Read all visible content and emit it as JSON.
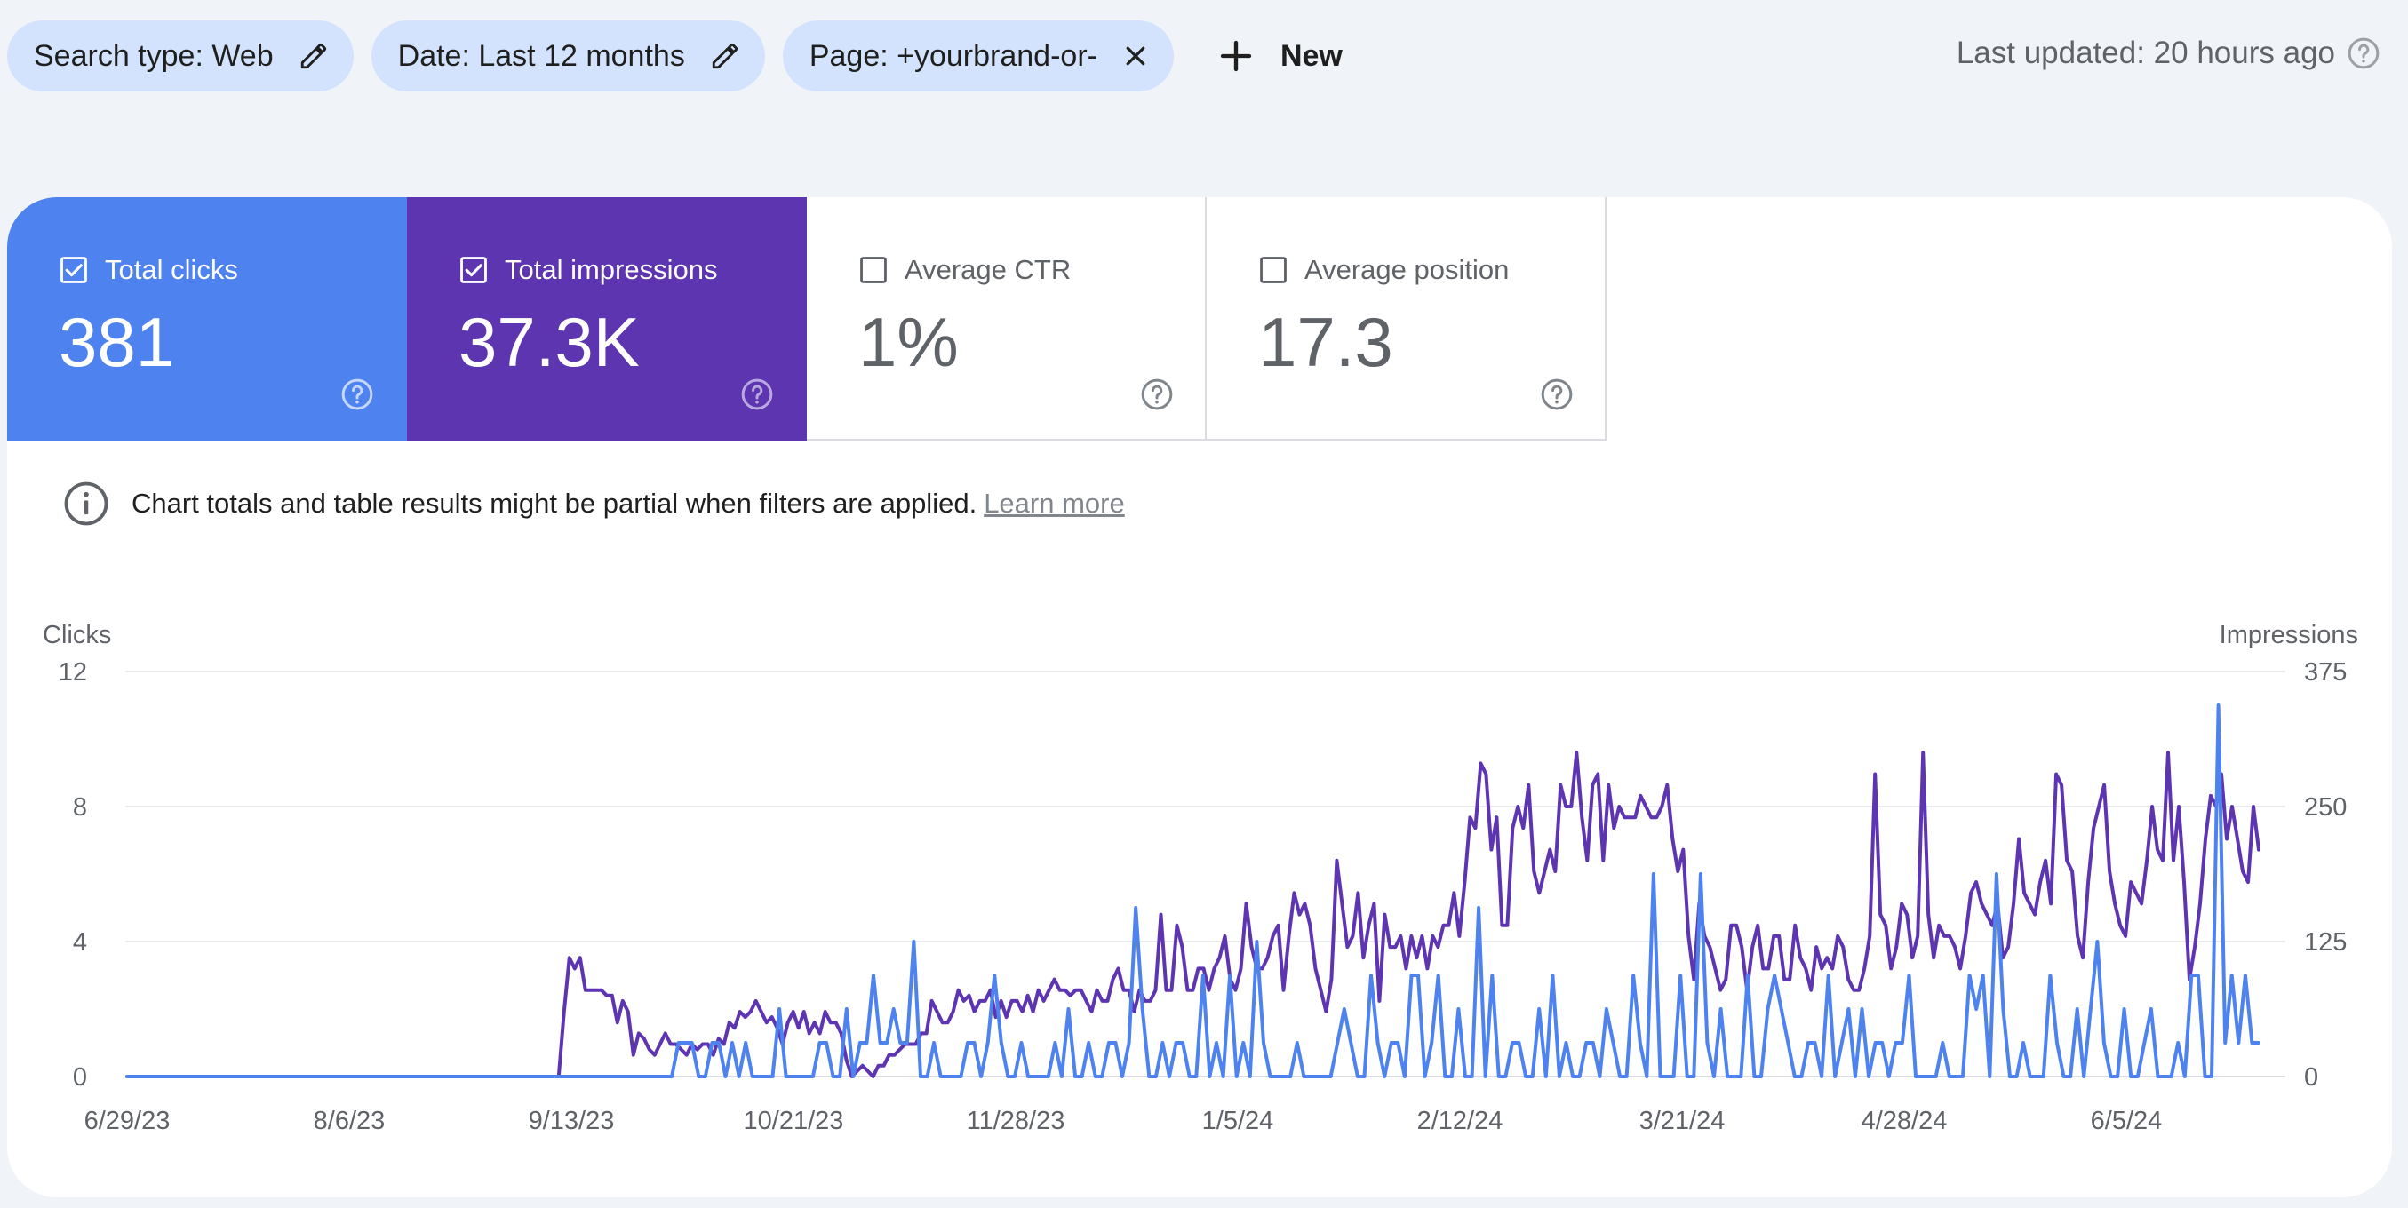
{
  "filters": {
    "chips": [
      {
        "label": "Search type: Web",
        "icon": "pencil-icon"
      },
      {
        "label": "Date: Last 12 months",
        "icon": "pencil-icon"
      },
      {
        "label": "Page: +yourbrand-or-",
        "icon": "close-icon"
      }
    ],
    "new_label": "New",
    "last_updated": "Last updated: 20 hours ago"
  },
  "metrics": [
    {
      "label": "Total clicks",
      "value": "381",
      "checked": true,
      "color": "#4e82ee"
    },
    {
      "label": "Total impressions",
      "value": "37.3K",
      "checked": true,
      "color": "#5e35b1"
    },
    {
      "label": "Average CTR",
      "value": "1%",
      "checked": false
    },
    {
      "label": "Average position",
      "value": "17.3",
      "checked": false
    }
  ],
  "notice": {
    "text": "Chart totals and table results might be partial when filters are applied.",
    "link": "Learn more"
  },
  "chart_data": {
    "type": "line",
    "x_start": "6/29/23",
    "x_end": "6/26/24",
    "x_ticks": [
      "6/29/23",
      "8/6/23",
      "9/13/23",
      "10/21/23",
      "11/28/23",
      "1/5/24",
      "2/12/24",
      "3/21/24",
      "4/28/24",
      "6/5/24"
    ],
    "y_left": {
      "label": "Clicks",
      "ticks": [
        "0",
        "4",
        "8",
        "12"
      ],
      "range": [
        0,
        12
      ]
    },
    "y_right": {
      "label": "Impressions",
      "ticks": [
        "0",
        "125",
        "250",
        "375"
      ],
      "range": [
        0,
        375
      ]
    },
    "grid": true,
    "series": [
      {
        "name": "Clicks",
        "axis": "left",
        "color": "#4e82ee",
        "values": [
          0,
          0,
          0,
          0,
          0,
          0,
          0,
          0,
          0,
          0,
          0,
          0,
          0,
          0,
          0,
          0,
          0,
          0,
          0,
          0,
          0,
          0,
          0,
          0,
          0,
          0,
          0,
          0,
          0,
          0,
          0,
          0,
          0,
          0,
          0,
          0,
          0,
          0,
          0,
          0,
          0,
          0,
          0,
          0,
          0,
          0,
          0,
          0,
          0,
          0,
          0,
          0,
          0,
          0,
          0,
          0,
          0,
          0,
          0,
          0,
          0,
          0,
          0,
          0,
          0,
          0,
          0,
          0,
          0,
          0,
          0,
          0,
          0,
          0,
          0,
          0,
          0,
          0,
          0,
          0,
          0,
          0,
          1,
          1,
          1,
          0,
          0,
          1,
          1,
          0,
          1,
          0,
          1,
          0,
          0,
          0,
          0,
          2,
          0,
          0,
          0,
          0,
          0,
          1,
          1,
          0,
          0,
          2,
          0,
          1,
          1,
          3,
          1,
          1,
          2,
          1,
          1,
          4,
          0,
          0,
          1,
          0,
          0,
          0,
          0,
          1,
          1,
          0,
          1,
          3,
          1,
          0,
          0,
          1,
          0,
          0,
          0,
          0,
          1,
          0,
          2,
          0,
          0,
          1,
          0,
          0,
          1,
          1,
          0,
          1,
          5,
          2,
          0,
          0,
          1,
          0,
          1,
          1,
          0,
          0,
          3,
          0,
          1,
          0,
          3,
          0,
          1,
          0,
          4,
          1,
          0,
          0,
          0,
          0,
          1,
          0,
          0,
          0,
          0,
          0,
          1,
          2,
          1,
          0,
          0,
          3,
          1,
          0,
          1,
          1,
          0,
          3,
          3,
          0,
          1,
          3,
          0,
          0,
          2,
          0,
          0,
          5,
          0,
          3,
          0,
          0,
          1,
          1,
          0,
          0,
          2,
          0,
          3,
          0,
          1,
          0,
          0,
          1,
          1,
          0,
          2,
          1,
          0,
          0,
          3,
          1,
          0,
          6,
          0,
          0,
          0,
          3,
          0,
          0,
          6,
          1,
          0,
          2,
          0,
          0,
          0,
          3,
          0,
          0,
          2,
          3,
          2,
          1,
          0,
          0,
          1,
          1,
          0,
          3,
          0,
          1,
          2,
          0,
          2,
          0,
          1,
          1,
          0,
          1,
          1,
          3,
          0,
          0,
          0,
          0,
          1,
          0,
          0,
          0,
          3,
          2,
          3,
          0,
          6,
          2,
          0,
          0,
          1,
          0,
          0,
          0,
          3,
          1,
          0,
          0,
          2,
          0,
          2,
          4,
          1,
          0,
          0,
          2,
          0,
          0,
          1,
          2,
          0,
          0,
          0,
          1,
          0,
          3,
          3,
          0,
          0,
          11,
          1,
          3,
          1,
          3,
          1,
          1
        ]
      },
      {
        "name": "Impressions",
        "axis": "right",
        "color": "#5e35b1",
        "values": [
          0,
          0,
          0,
          0,
          0,
          0,
          0,
          0,
          0,
          0,
          0,
          0,
          0,
          0,
          0,
          0,
          0,
          0,
          0,
          0,
          0,
          0,
          0,
          0,
          0,
          0,
          0,
          0,
          0,
          0,
          0,
          0,
          0,
          0,
          0,
          0,
          0,
          0,
          0,
          0,
          0,
          0,
          0,
          0,
          0,
          0,
          0,
          0,
          0,
          0,
          0,
          0,
          0,
          0,
          0,
          0,
          0,
          0,
          0,
          0,
          0,
          0,
          0,
          0,
          0,
          0,
          0,
          0,
          0,
          0,
          0,
          0,
          0,
          0,
          0,
          0,
          0,
          0,
          0,
          0,
          0,
          0,
          60,
          110,
          100,
          110,
          80,
          80,
          80,
          80,
          75,
          75,
          50,
          70,
          60,
          20,
          40,
          35,
          25,
          20,
          30,
          40,
          30,
          30,
          25,
          20,
          30,
          25,
          30,
          30,
          20,
          35,
          30,
          50,
          45,
          60,
          55,
          60,
          70,
          60,
          50,
          55,
          45,
          30,
          50,
          60,
          45,
          60,
          40,
          50,
          40,
          60,
          50,
          50,
          40,
          15,
          0,
          5,
          10,
          5,
          0,
          10,
          10,
          20,
          20,
          25,
          30,
          30,
          30,
          40,
          40,
          70,
          60,
          50,
          50,
          60,
          80,
          70,
          75,
          60,
          70,
          70,
          80,
          55,
          70,
          55,
          70,
          70,
          60,
          75,
          60,
          80,
          70,
          80,
          90,
          80,
          80,
          75,
          80,
          80,
          70,
          60,
          80,
          70,
          70,
          90,
          100,
          80,
          80,
          60,
          80,
          70,
          70,
          80,
          150,
          80,
          80,
          140,
          120,
          80,
          80,
          100,
          100,
          80,
          100,
          110,
          130,
          90,
          80,
          100,
          160,
          120,
          100,
          100,
          110,
          130,
          140,
          80,
          130,
          170,
          150,
          160,
          140,
          100,
          80,
          60,
          90,
          200,
          160,
          120,
          130,
          170,
          110,
          140,
          160,
          70,
          150,
          120,
          120,
          130,
          100,
          130,
          110,
          130,
          100,
          130,
          120,
          140,
          140,
          170,
          130,
          180,
          240,
          230,
          290,
          280,
          210,
          240,
          140,
          140,
          230,
          250,
          230,
          270,
          190,
          170,
          190,
          210,
          190,
          270,
          250,
          250,
          300,
          240,
          200,
          270,
          280,
          200,
          270,
          230,
          250,
          240,
          240,
          240,
          260,
          250,
          240,
          240,
          250,
          270,
          220,
          190,
          210,
          130,
          90,
          160,
          130,
          120,
          100,
          80,
          90,
          140,
          140,
          120,
          80,
          120,
          140,
          100,
          100,
          130,
          130,
          90,
          90,
          140,
          110,
          100,
          80,
          120,
          100,
          110,
          100,
          130,
          120,
          90,
          80,
          80,
          100,
          130,
          280,
          150,
          140,
          100,
          120,
          160,
          150,
          110,
          130,
          300,
          150,
          110,
          140,
          130,
          130,
          120,
          100,
          130,
          170,
          180,
          160,
          150,
          140,
          160,
          110,
          120,
          160,
          220,
          170,
          160,
          150,
          180,
          200,
          160,
          280,
          270,
          200,
          190,
          130,
          110,
          180,
          230,
          250,
          270,
          190,
          160,
          140,
          130,
          180,
          170,
          160,
          200,
          250,
          210,
          200,
          300,
          200,
          250,
          180,
          90,
          120,
          160,
          220,
          260,
          250,
          280,
          220,
          250,
          220,
          190,
          180,
          250,
          210
        ]
      }
    ]
  }
}
